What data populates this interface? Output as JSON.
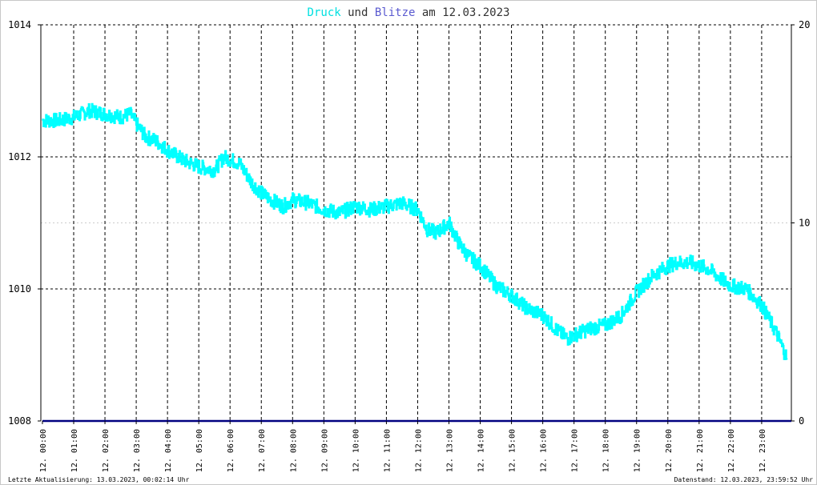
{
  "title": {
    "part1": "Druck",
    "part2": " und ",
    "part3": "Blitze",
    "part4": " am 12.03.2023",
    "color1": "#00e0e0",
    "color2": "#333333",
    "color3": "#5a5ad0",
    "color4": "#333333"
  },
  "footer": {
    "left": "Letzte Aktualisierung: 13.03.2023, 00:02:14 Uhr",
    "right": "Datenstand: 12.03.2023, 23:59:52 Uhr"
  },
  "colors": {
    "pressure": "#00ffff",
    "lightning": "#000080",
    "grid": "#000000",
    "grid_minor": "#cccccc",
    "text": "#000000"
  },
  "chart_data": {
    "type": "line",
    "title": "Druck und Blitze am 12.03.2023",
    "x_unit": "hours",
    "xlim": [
      -0.05,
      23.95
    ],
    "x_ticks": [
      0,
      1,
      2,
      3,
      4,
      5,
      6,
      7,
      8,
      9,
      10,
      11,
      12,
      13,
      14,
      15,
      16,
      17,
      18,
      19,
      20,
      21,
      22,
      23
    ],
    "x_tick_labels": [
      "12. 00:00",
      "12. 01:00",
      "12. 02:00",
      "12. 03:00",
      "12. 04:00",
      "12. 05:00",
      "12. 06:00",
      "12. 07:00",
      "12. 08:00",
      "12. 09:00",
      "12. 10:00",
      "12. 11:00",
      "12. 12:00",
      "12. 13:00",
      "12. 14:00",
      "12. 15:00",
      "12. 16:00",
      "12. 17:00",
      "12. 18:00",
      "12. 19:00",
      "12. 20:00",
      "12. 21:00",
      "12. 22:00",
      "12. 23:00"
    ],
    "y_left": {
      "lim": [
        1008,
        1014
      ],
      "ticks": [
        1008,
        1010,
        1012,
        1014
      ]
    },
    "y_right": {
      "lim": [
        0,
        20
      ],
      "ticks": [
        0,
        10,
        20
      ]
    },
    "grid": true,
    "series": [
      {
        "name": "Druck",
        "axis": "left",
        "x": [
          0,
          0.5,
          1,
          1.5,
          2,
          2.5,
          2.8,
          3,
          3.3,
          3.6,
          4,
          4.5,
          5,
          5.5,
          5.8,
          6.3,
          6.7,
          7,
          7.3,
          7.7,
          8,
          8.5,
          9,
          9.5,
          10,
          10.5,
          11,
          11.5,
          12,
          12.3,
          12.6,
          13,
          13.3,
          13.6,
          14,
          14.5,
          15,
          15.5,
          16,
          16.5,
          16.8,
          17,
          17.5,
          18,
          18.5,
          19,
          19.5,
          20,
          20.3,
          20.7,
          21,
          21.3,
          21.7,
          22,
          22.5,
          23,
          23.5,
          23.8
        ],
        "values": [
          1012.55,
          1012.55,
          1012.6,
          1012.7,
          1012.65,
          1012.6,
          1012.65,
          1012.5,
          1012.3,
          1012.25,
          1012.1,
          1011.95,
          1011.85,
          1011.8,
          1012.0,
          1011.9,
          1011.6,
          1011.45,
          1011.35,
          1011.25,
          1011.35,
          1011.3,
          1011.2,
          1011.15,
          1011.25,
          1011.2,
          1011.25,
          1011.3,
          1011.2,
          1010.9,
          1010.85,
          1011.0,
          1010.7,
          1010.5,
          1010.35,
          1010.05,
          1009.9,
          1009.7,
          1009.6,
          1009.35,
          1009.25,
          1009.3,
          1009.4,
          1009.45,
          1009.6,
          1009.95,
          1010.2,
          1010.35,
          1010.4,
          1010.4,
          1010.35,
          1010.3,
          1010.15,
          1010.05,
          1010.0,
          1009.75,
          1009.3,
          1008.95
        ]
      },
      {
        "name": "Blitze",
        "axis": "right",
        "x": [
          0,
          23.95
        ],
        "values": [
          0,
          0
        ]
      }
    ]
  }
}
